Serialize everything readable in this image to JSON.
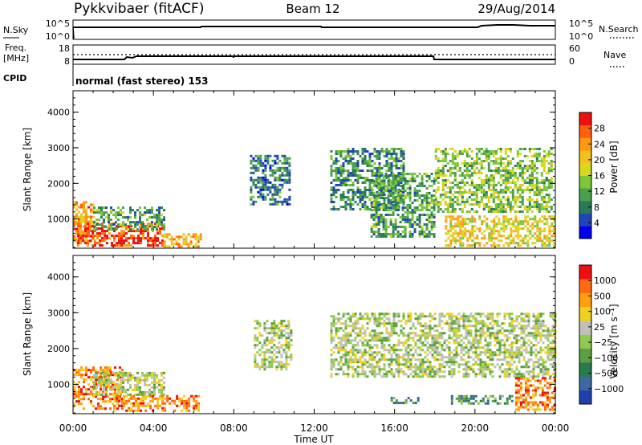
{
  "header": {
    "title": "Pykkvibaer (fitACF)",
    "beam": "Beam 12",
    "date": "29/Aug/2014"
  },
  "noise_panel": {
    "left_label": "N.Sky",
    "right_label": "N.Search",
    "left_ticks": [
      "10^5",
      "10^0"
    ],
    "right_ticks": [
      "10^5",
      "10^0"
    ]
  },
  "freq_panel": {
    "left_label_line1": "Freq.",
    "left_label_line2": "[MHz]",
    "right_label": "Nave",
    "left_ticks": [
      "18",
      "8"
    ],
    "right_ticks": [
      "60",
      "0"
    ]
  },
  "cpid": {
    "label": "CPID",
    "text": "normal (fast stereo) 153"
  },
  "chart_data": [
    {
      "type": "heatmap",
      "title": "",
      "xlabel": "Time UT",
      "ylabel": "Slant Range [km]",
      "xlim": [
        0,
        24
      ],
      "ylim": [
        180,
        4600
      ],
      "x_ticks": [
        "00:00",
        "04:00",
        "08:00",
        "12:00",
        "16:00",
        "20:00",
        "00:00"
      ],
      "y_ticks": [
        "1000",
        "2000",
        "3000",
        "4000"
      ],
      "colorbar_label": "Power [dB]",
      "colorbar_ticks": [
        "4",
        "8",
        "12",
        "16",
        "20",
        "24",
        "28"
      ],
      "colorbar_colors": [
        "#0000ee",
        "#2244bb",
        "#2a7a5a",
        "#4aa050",
        "#7cc63a",
        "#d8d820",
        "#f4c020",
        "#ff9a10",
        "#ff6010",
        "#ee1010"
      ],
      "regions": [
        {
          "t0": 0.0,
          "t1": 1.0,
          "r0": 350,
          "r1": 1500,
          "level": 0.75
        },
        {
          "t0": 0.2,
          "t1": 4.5,
          "r0": 250,
          "r1": 900,
          "level": 0.9
        },
        {
          "t0": 1.0,
          "t1": 4.5,
          "r0": 700,
          "r1": 1350,
          "level": 0.35
        },
        {
          "t0": 4.5,
          "t1": 6.3,
          "r0": 250,
          "r1": 600,
          "level": 0.7
        },
        {
          "t0": 8.8,
          "t1": 10.8,
          "r0": 1400,
          "r1": 2800,
          "level": 0.25
        },
        {
          "t0": 12.8,
          "t1": 16.5,
          "r0": 1300,
          "r1": 3000,
          "level": 0.3
        },
        {
          "t0": 14.8,
          "t1": 18.0,
          "r0": 500,
          "r1": 2300,
          "level": 0.35
        },
        {
          "t0": 18.0,
          "t1": 23.8,
          "r0": 1200,
          "r1": 3000,
          "level": 0.45
        },
        {
          "t0": 18.5,
          "t1": 24.0,
          "r0": 250,
          "r1": 1100,
          "level": 0.6
        }
      ]
    },
    {
      "type": "heatmap",
      "title": "",
      "xlabel": "Time UT",
      "ylabel": "Slant Range [km]",
      "xlim": [
        0,
        24
      ],
      "ylim": [
        180,
        4600
      ],
      "x_ticks": [
        "00:00",
        "04:00",
        "08:00",
        "12:00",
        "16:00",
        "20:00",
        "00:00"
      ],
      "y_ticks": [
        "1000",
        "2000",
        "3000",
        "4000"
      ],
      "colorbar_label": "Velocity [m s⁻¹]",
      "colorbar_ticks": [
        "1000",
        "500",
        "100",
        "25",
        "−25",
        "−100",
        "−500",
        "−1000"
      ],
      "colorbar_colors": [
        "#2040b0",
        "#3a6aa0",
        "#2a7a50",
        "#5aa040",
        "#90c850",
        "#c0c0b8",
        "#f0d020",
        "#ffa010",
        "#ff6a10",
        "#ee1010"
      ],
      "regions": [
        {
          "t0": 0.0,
          "t1": 2.5,
          "r0": 300,
          "r1": 1500,
          "level": 0.82
        },
        {
          "t0": 1.0,
          "t1": 4.5,
          "r0": 700,
          "r1": 1350,
          "level": 0.5
        },
        {
          "t0": 2.0,
          "t1": 6.3,
          "r0": 250,
          "r1": 700,
          "level": 0.78
        },
        {
          "t0": 9.0,
          "t1": 10.8,
          "r0": 1400,
          "r1": 2800,
          "level": 0.5
        },
        {
          "t0": 12.8,
          "t1": 24.0,
          "r0": 1200,
          "r1": 3000,
          "level": 0.5
        },
        {
          "t0": 15.8,
          "t1": 17.2,
          "r0": 450,
          "r1": 650,
          "level": 0.28
        },
        {
          "t0": 18.8,
          "t1": 21.8,
          "r0": 450,
          "r1": 700,
          "level": 0.28
        },
        {
          "t0": 22.0,
          "t1": 24.0,
          "r0": 300,
          "r1": 1200,
          "level": 0.8
        }
      ]
    }
  ]
}
